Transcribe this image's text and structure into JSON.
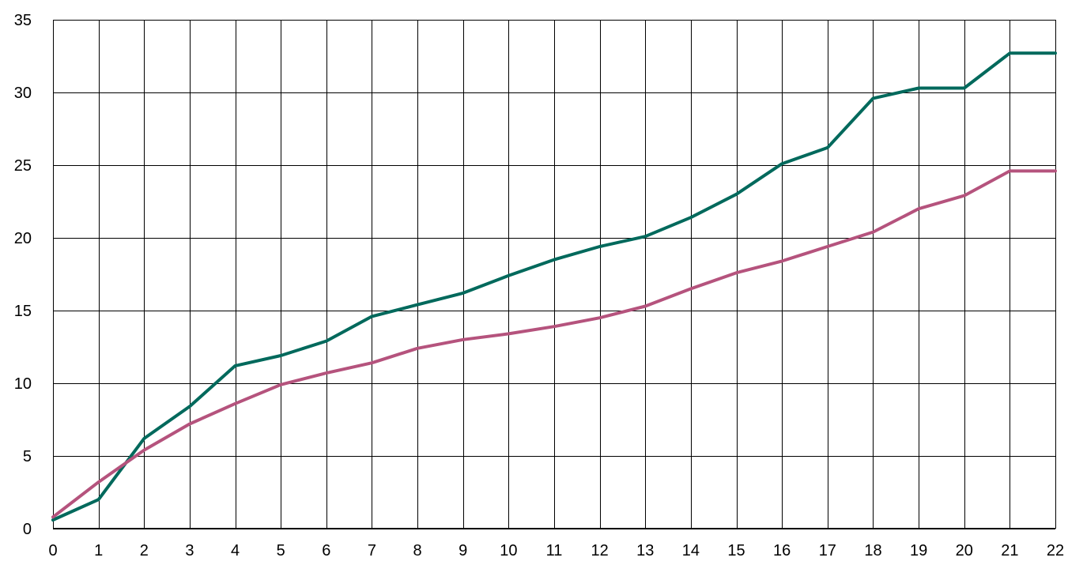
{
  "chart_data": {
    "type": "line",
    "title": "",
    "xlabel": "",
    "ylabel": "",
    "x": [
      0,
      1,
      2,
      3,
      4,
      5,
      6,
      7,
      8,
      9,
      10,
      11,
      12,
      13,
      14,
      15,
      16,
      17,
      18,
      19,
      20,
      21,
      22
    ],
    "xlim": [
      0,
      22
    ],
    "ylim": [
      0,
      35
    ],
    "x_ticks": [
      "0",
      "1",
      "2",
      "3",
      "4",
      "5",
      "6",
      "7",
      "8",
      "9",
      "10",
      "11",
      "12",
      "13",
      "14",
      "15",
      "16",
      "17",
      "18",
      "19",
      "20",
      "21",
      "22"
    ],
    "y_ticks": [
      "0",
      "5",
      "10",
      "15",
      "20",
      "25",
      "30",
      "35"
    ],
    "grid": true,
    "legend": "none",
    "series": [
      {
        "color": "#00695c",
        "values": [
          0.6,
          2.0,
          6.2,
          8.4,
          11.2,
          11.9,
          12.9,
          14.6,
          15.4,
          16.2,
          17.4,
          18.5,
          19.4,
          20.1,
          21.4,
          23.0,
          25.1,
          26.2,
          29.6,
          30.3,
          30.3,
          32.7,
          32.7
        ]
      },
      {
        "color": "#b5537d",
        "values": [
          0.8,
          3.2,
          5.4,
          7.2,
          8.6,
          9.9,
          10.7,
          11.4,
          12.4,
          13.0,
          13.4,
          13.9,
          14.5,
          15.3,
          16.5,
          17.6,
          18.4,
          19.4,
          20.4,
          22.0,
          22.9,
          24.6,
          24.6
        ]
      }
    ]
  }
}
